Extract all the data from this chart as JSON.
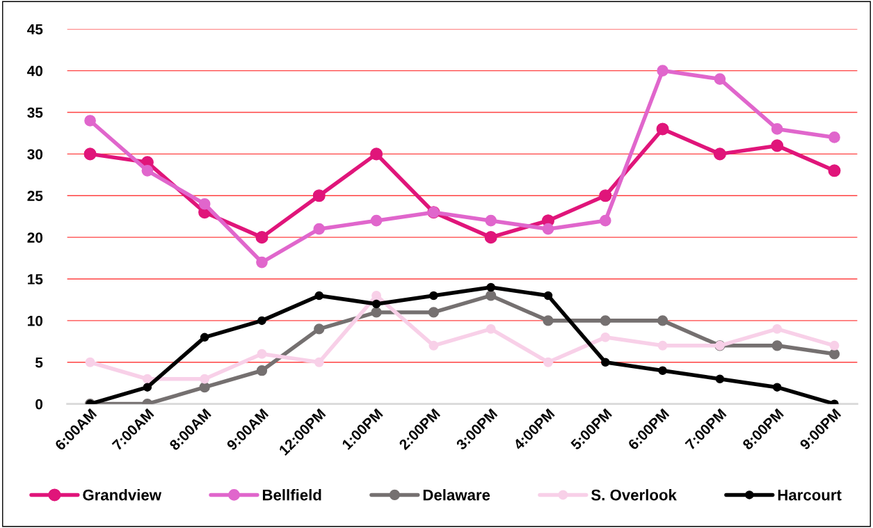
{
  "chart_data": {
    "type": "line",
    "categories": [
      "6:00AM",
      "7:00AM",
      "8:00AM",
      "9:00AM",
      "12:00PM",
      "1:00PM",
      "2:00PM",
      "3:00PM",
      "4:00PM",
      "5:00PM",
      "6:00PM",
      "7:00PM",
      "8:00PM",
      "9:00PM"
    ],
    "series": [
      {
        "name": "Grandview",
        "color": "#e0157a",
        "values": [
          30,
          29,
          23,
          20,
          25,
          30,
          23,
          20,
          22,
          25,
          33,
          30,
          31,
          28
        ]
      },
      {
        "name": "Bellfield",
        "color": "#e066cc",
        "values": [
          34,
          28,
          24,
          17,
          21,
          22,
          23,
          22,
          21,
          22,
          40,
          39,
          33,
          32
        ]
      },
      {
        "name": "Delaware",
        "color": "#757070",
        "values": [
          0,
          0,
          2,
          4,
          9,
          11,
          11,
          13,
          10,
          10,
          10,
          7,
          7,
          6
        ]
      },
      {
        "name": "S. Overlook",
        "color": "#f8d0e8",
        "values": [
          5,
          3,
          3,
          6,
          5,
          13,
          7,
          9,
          5,
          8,
          7,
          7,
          9,
          7
        ]
      },
      {
        "name": "Harcourt",
        "color": "#000000",
        "values": [
          0,
          2,
          8,
          10,
          13,
          12,
          13,
          14,
          13,
          5,
          4,
          3,
          2,
          0
        ]
      }
    ],
    "ylim": [
      0,
      45
    ],
    "yticks": [
      0,
      5,
      10,
      15,
      20,
      25,
      30,
      35,
      40,
      45
    ],
    "grid": "y",
    "legend": "bottom",
    "marker": "circle",
    "line_style": "solid"
  }
}
